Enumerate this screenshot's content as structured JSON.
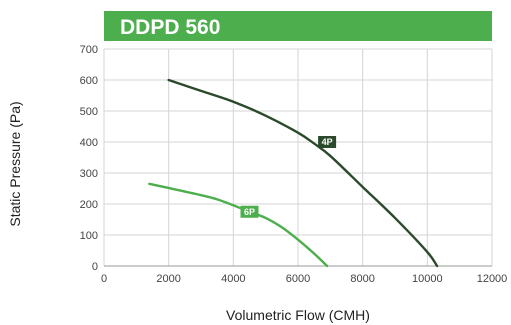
{
  "chart_data": {
    "type": "line",
    "title": "DDPD 560",
    "xlabel": "Volumetric Flow (CMH)",
    "ylabel": "Static Pressure (Pa)",
    "xlim": [
      0,
      12000
    ],
    "ylim": [
      0,
      700
    ],
    "xticks": [
      0,
      2000,
      4000,
      6000,
      8000,
      10000,
      12000
    ],
    "yticks": [
      0,
      100,
      200,
      300,
      400,
      500,
      600,
      700
    ],
    "grid": true,
    "series": [
      {
        "name": "4P",
        "color": "#2b4a2b",
        "x": [
          2000,
          3000,
          4000,
          5000,
          6000,
          6500,
          7000,
          8000,
          9000,
          10000,
          10300
        ],
        "y": [
          600,
          565,
          530,
          485,
          430,
          395,
          355,
          255,
          155,
          45,
          0
        ],
        "label_at": [
          6900,
          400
        ]
      },
      {
        "name": "6P",
        "color": "#4cae4c",
        "x": [
          1400,
          2500,
          3500,
          4500,
          5000,
          5500,
          6000,
          6500,
          6900
        ],
        "y": [
          265,
          240,
          215,
          175,
          155,
          125,
          85,
          40,
          0
        ],
        "label_at": [
          4500,
          175
        ]
      }
    ],
    "colors": {
      "title_bar": "#4cae4c",
      "grid": "#d4d4d4"
    }
  }
}
